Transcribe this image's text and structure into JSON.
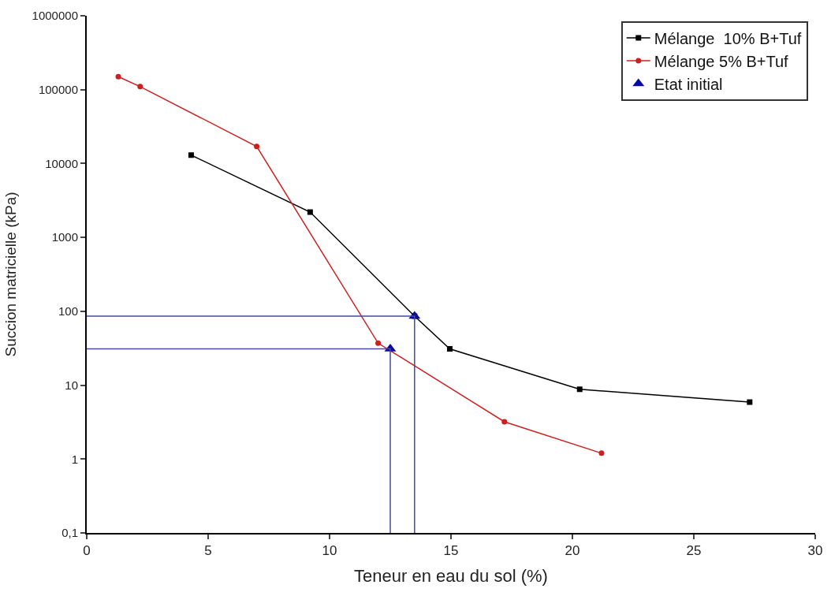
{
  "chart_data": {
    "type": "line",
    "xlabel": "Teneur en eau du sol (%)",
    "ylabel": "Succion matricielle (kPa)",
    "xlim": [
      0,
      30
    ],
    "xticks": [
      0,
      5,
      10,
      15,
      20,
      25,
      30
    ],
    "ylim": [
      0.1,
      1000000
    ],
    "yticks": [
      {
        "value": 0.1,
        "label": "0,1"
      },
      1,
      10,
      100,
      1000,
      10000,
      100000,
      1000000
    ],
    "log": "y",
    "legend": "top right",
    "series": [
      {
        "name": "Mélange  10% B+Tuf",
        "color": "#000000",
        "marker": "square",
        "x": [
          4.3,
          9.2,
          13.5,
          14.95,
          20.3,
          27.3
        ],
        "values": [
          13000,
          2200,
          86,
          31,
          8.8,
          5.9
        ]
      },
      {
        "name": "Mélange 5% B+Tuf",
        "color": "#cc2020",
        "marker": "circle",
        "x": [
          1.3,
          2.2,
          7.0,
          12.0,
          17.2,
          21.2
        ],
        "values": [
          150000,
          110000,
          17000,
          37,
          3.2,
          1.2
        ]
      },
      {
        "name": "Etat initial",
        "type": "scatter",
        "color": "#0a0a9a",
        "marker": "triangle",
        "x": [
          12.5,
          13.5
        ],
        "values": [
          31,
          86
        ]
      },
      {
        "type": "line",
        "color": "#4a4aa0",
        "marker": "none",
        "x": [
          0,
          12.5,
          12.5
        ],
        "values": [
          31,
          31,
          0.1
        ]
      },
      {
        "type": "line",
        "color": "#4a4aa0",
        "marker": "none",
        "x": [
          0,
          13.5,
          13.5
        ],
        "values": [
          86,
          86,
          0.1
        ]
      }
    ]
  }
}
